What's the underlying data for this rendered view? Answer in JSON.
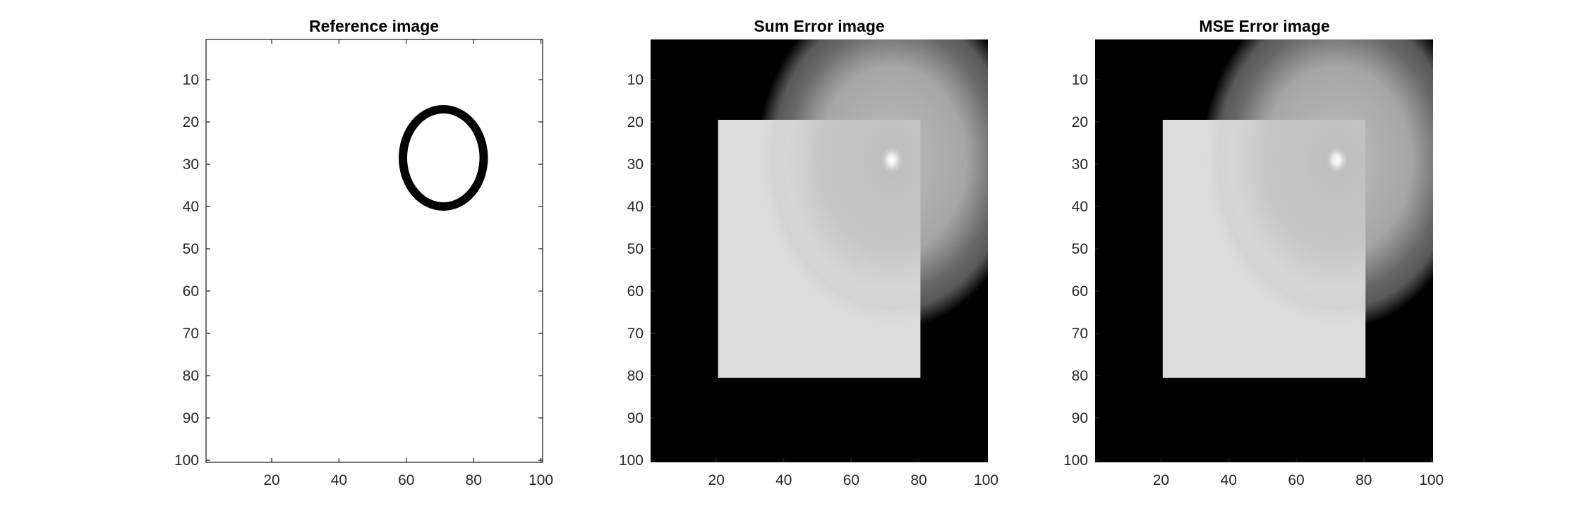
{
  "chart_data": [
    {
      "type": "heatmap",
      "title": "Reference image",
      "xlim": [
        0.5,
        100.5
      ],
      "ylim": [
        0.5,
        100.5
      ],
      "y_direction": "reversed",
      "xticks": [
        20,
        40,
        60,
        80,
        100
      ],
      "yticks": [
        10,
        20,
        30,
        40,
        50,
        60,
        70,
        80,
        90,
        100
      ],
      "background_value": "#ffffff",
      "frame": "box",
      "features": [
        {
          "shape": "ellipse-ring",
          "center_x": 71,
          "center_y": 28.5,
          "radius_x": 12,
          "radius_y": 11.5,
          "thickness": 2.5,
          "color": "#000000"
        }
      ]
    },
    {
      "type": "heatmap",
      "title": "Sum Error image",
      "xlim": [
        0.5,
        100.5
      ],
      "ylim": [
        0.5,
        100.5
      ],
      "y_direction": "reversed",
      "xticks": [
        20,
        40,
        60,
        80,
        100
      ],
      "yticks": [
        10,
        20,
        30,
        40,
        50,
        60,
        70,
        80,
        90,
        100
      ],
      "background_value": "#000000",
      "frame": "none",
      "features": [
        {
          "shape": "rect",
          "x_range": [
            21,
            80
          ],
          "y_range": [
            20,
            80
          ],
          "color": "#dcdcdc"
        },
        {
          "shape": "ring-halo",
          "center_x": 72,
          "center_y": 29,
          "color": "#bdbdbd"
        },
        {
          "shape": "bright-spot",
          "center_x": 72,
          "center_y": 29,
          "color": "#ffffff"
        }
      ]
    },
    {
      "type": "heatmap",
      "title": "MSE Error image",
      "xlim": [
        0.5,
        100.5
      ],
      "ylim": [
        0.5,
        100.5
      ],
      "y_direction": "reversed",
      "xticks": [
        20,
        40,
        60,
        80,
        100
      ],
      "yticks": [
        10,
        20,
        30,
        40,
        50,
        60,
        70,
        80,
        90,
        100
      ],
      "background_value": "#000000",
      "frame": "none",
      "features": [
        {
          "shape": "rect",
          "x_range": [
            21,
            80
          ],
          "y_range": [
            20,
            80
          ],
          "color": "#dcdcdc"
        },
        {
          "shape": "ring-halo",
          "center_x": 72,
          "center_y": 29,
          "color": "#bdbdbd"
        },
        {
          "shape": "bright-spot",
          "center_x": 72,
          "center_y": 29,
          "color": "#ffffff"
        }
      ]
    }
  ]
}
